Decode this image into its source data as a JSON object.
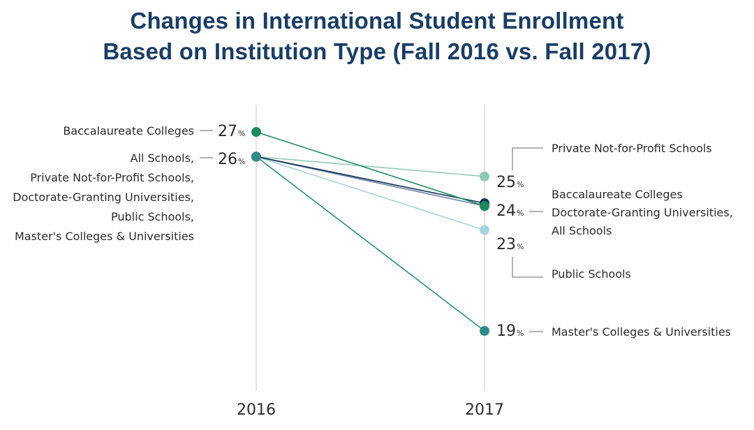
{
  "title_line1": "Changes in International Student Enrollment",
  "title_line2": "Based on Institution Type (Fall 2016 vs. Fall 2017)",
  "chart_data": {
    "type": "line",
    "title": "Changes in International Student Enrollment Based on Institution Type (Fall 2016 vs. Fall 2017)",
    "x": [
      "2016",
      "2017"
    ],
    "ylim": [
      17,
      29
    ],
    "unit": "%",
    "series": [
      {
        "name": "Baccalaureate Colleges",
        "values": [
          27,
          24
        ],
        "color": "#1f8a5e"
      },
      {
        "name": "All Schools",
        "values": [
          26,
          24
        ],
        "color": "#0f3352"
      },
      {
        "name": "Private Not-for-Profit Schools",
        "values": [
          26,
          25
        ],
        "color": "#93c8b2"
      },
      {
        "name": "Doctorate-Granting Universities",
        "values": [
          26,
          24
        ],
        "color": "#6a7fa8"
      },
      {
        "name": "Public Schools",
        "values": [
          26,
          23
        ],
        "color": "#a9d2dc"
      },
      {
        "name": "Master's Colleges & Universities",
        "values": [
          26,
          19
        ],
        "color": "#2e8b86"
      }
    ],
    "left_labels": [
      {
        "group": "Baccalaureate Colleges",
        "value": "27",
        "unit": "%",
        "lines": [
          "Baccalaureate Colleges"
        ]
      },
      {
        "group": "All Schools",
        "value": "26",
        "unit": "%",
        "lines": [
          "All Schools,",
          "Private Not-for-Profit Schools,",
          "Doctorate-Granting Universities,",
          "Public Schools,",
          "Master's Colleges & Universities"
        ]
      }
    ],
    "right_labels": [
      {
        "value": "25",
        "unit": "%",
        "lines": [
          "Private Not-for-Profit Schools"
        ]
      },
      {
        "value": "24",
        "unit": "%",
        "lines": [
          "Baccalaureate Colleges",
          "Doctorate-Granting Universities,",
          "All Schools"
        ]
      },
      {
        "value": "23",
        "unit": "%",
        "lines": [
          "Public Schools"
        ]
      },
      {
        "value": "19",
        "unit": "%",
        "lines": [
          "Master's Colleges & Universities"
        ]
      }
    ]
  }
}
